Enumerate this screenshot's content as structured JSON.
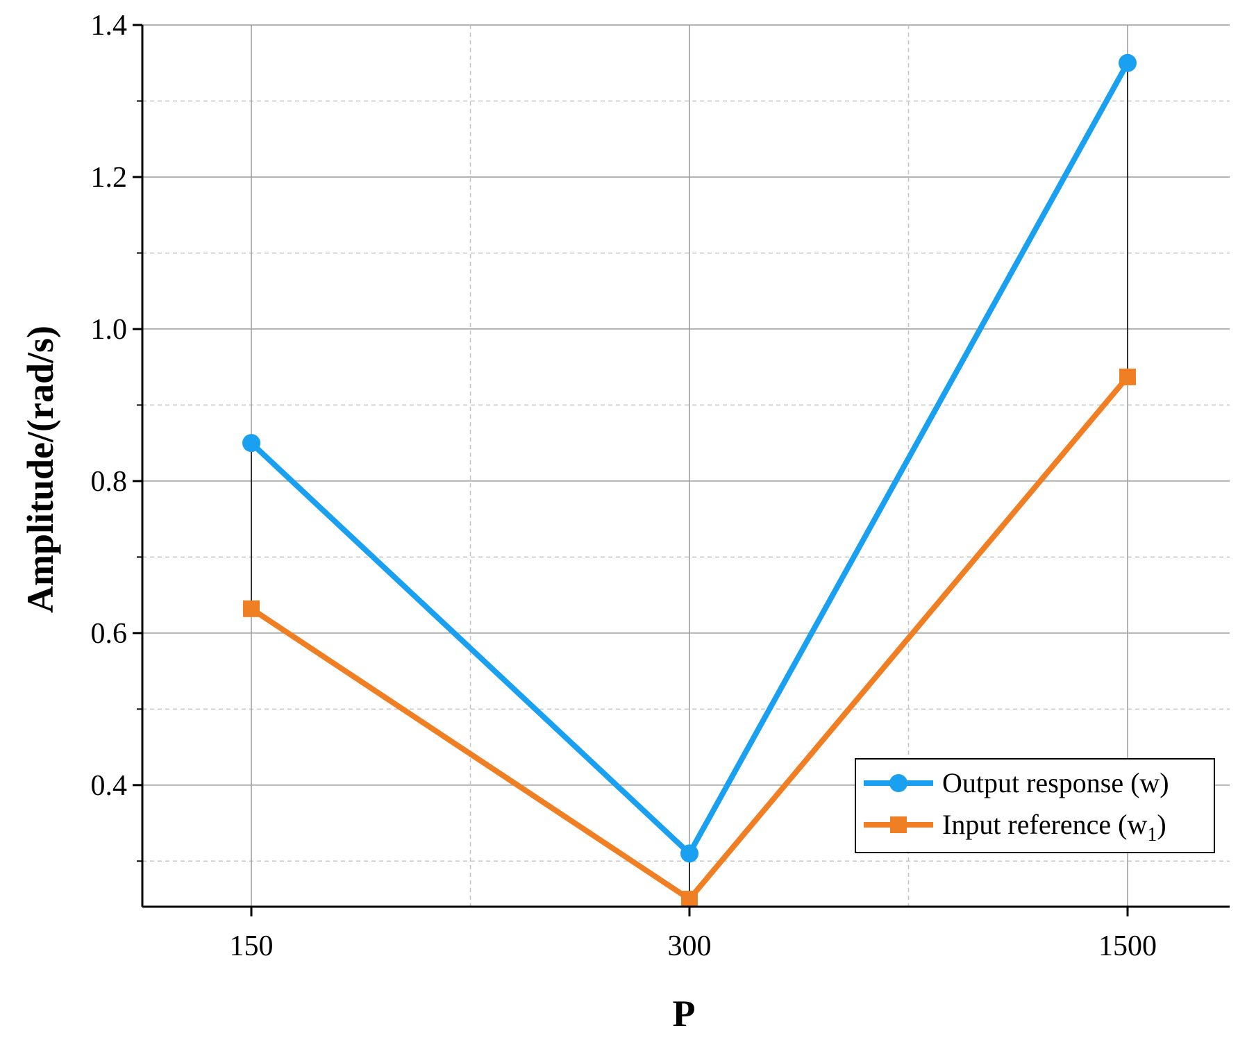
{
  "chart_data": {
    "type": "line",
    "xlabel": "P",
    "ylabel": "Amplitude/(rad/s)",
    "categories": [
      "150",
      "300",
      "1500"
    ],
    "ylim": [
      0.24,
      1.4
    ],
    "yticks": [
      0.4,
      0.6,
      0.8,
      1.0,
      1.2,
      1.4
    ],
    "ytick_labels": [
      "0.4",
      "0.6",
      "0.8",
      "1.0",
      "1.2",
      "1.4"
    ],
    "grid": true,
    "legend_position": "bottom-right",
    "series": [
      {
        "name": "Output response (w)",
        "values": [
          0.85,
          0.31,
          1.35
        ],
        "color": "#1aa0f0",
        "marker": "circle"
      },
      {
        "name": "Input reference (w1)",
        "name_main": "Input reference (w",
        "name_sub": "1",
        "name_end": ")",
        "values": [
          0.632,
          0.25,
          0.937
        ],
        "color": "#f07f24",
        "marker": "square"
      }
    ]
  }
}
